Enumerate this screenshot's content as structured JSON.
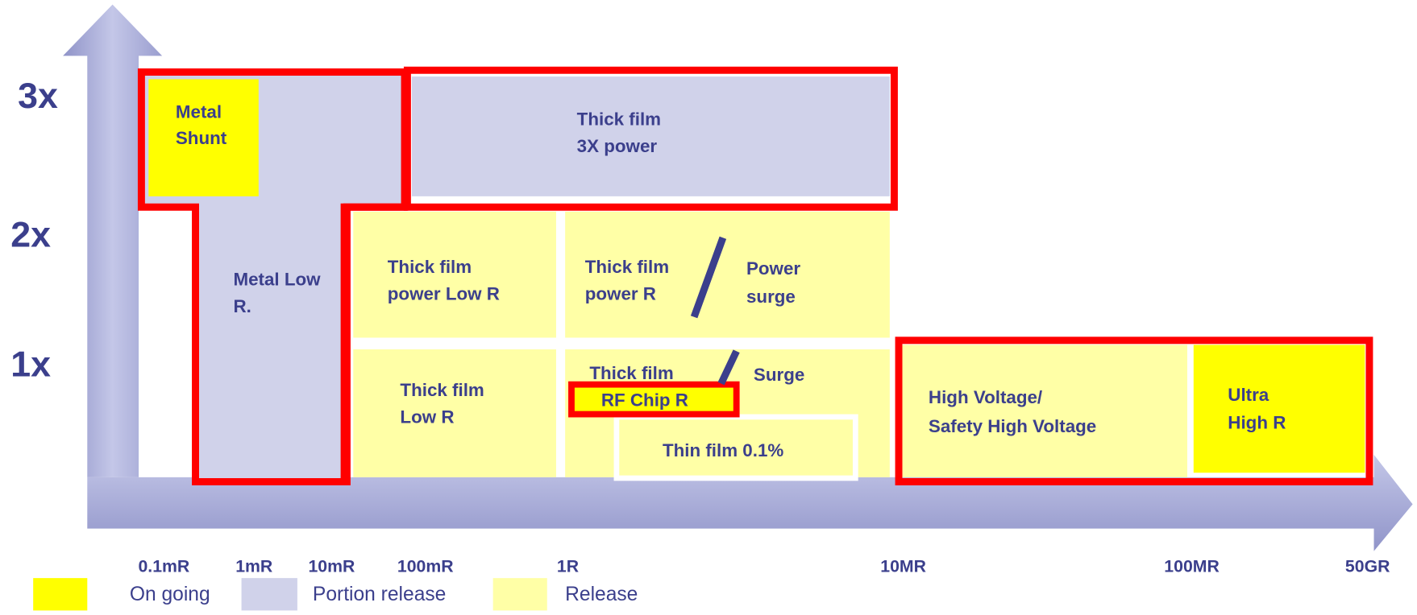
{
  "y_axis": {
    "labels": [
      "3x",
      "2x",
      "1x"
    ]
  },
  "x_axis": {
    "labels": [
      "0.1mR",
      "1mR",
      "10mR",
      "100mR",
      "1R",
      "10MR",
      "100MR",
      "50GR"
    ]
  },
  "blocks": [
    {
      "lines": [
        "Metal",
        "Shunt"
      ]
    },
    {
      "lines": [
        "Metal Low",
        "R."
      ]
    },
    {
      "lines": [
        "Thick film",
        "3X power"
      ]
    },
    {
      "lines": [
        "Thick film",
        "power Low R"
      ]
    },
    {
      "lines": [
        "Thick film",
        "power R"
      ]
    },
    {
      "lines": [
        "Power",
        "surge"
      ]
    },
    {
      "lines": [
        "Thick film",
        "Low R"
      ]
    },
    {
      "lines": [
        "Thick film"
      ]
    },
    {
      "lines": [
        "Surge"
      ]
    },
    {
      "lines": [
        "RF Chip R"
      ]
    },
    {
      "lines": [
        "Thin film 0.1%"
      ]
    },
    {
      "lines": [
        "High Voltage/",
        "Safety High Voltage"
      ]
    },
    {
      "lines": [
        "Ultra",
        "High R"
      ]
    }
  ],
  "legend": [
    "On going",
    "Portion release",
    "Release"
  ]
}
